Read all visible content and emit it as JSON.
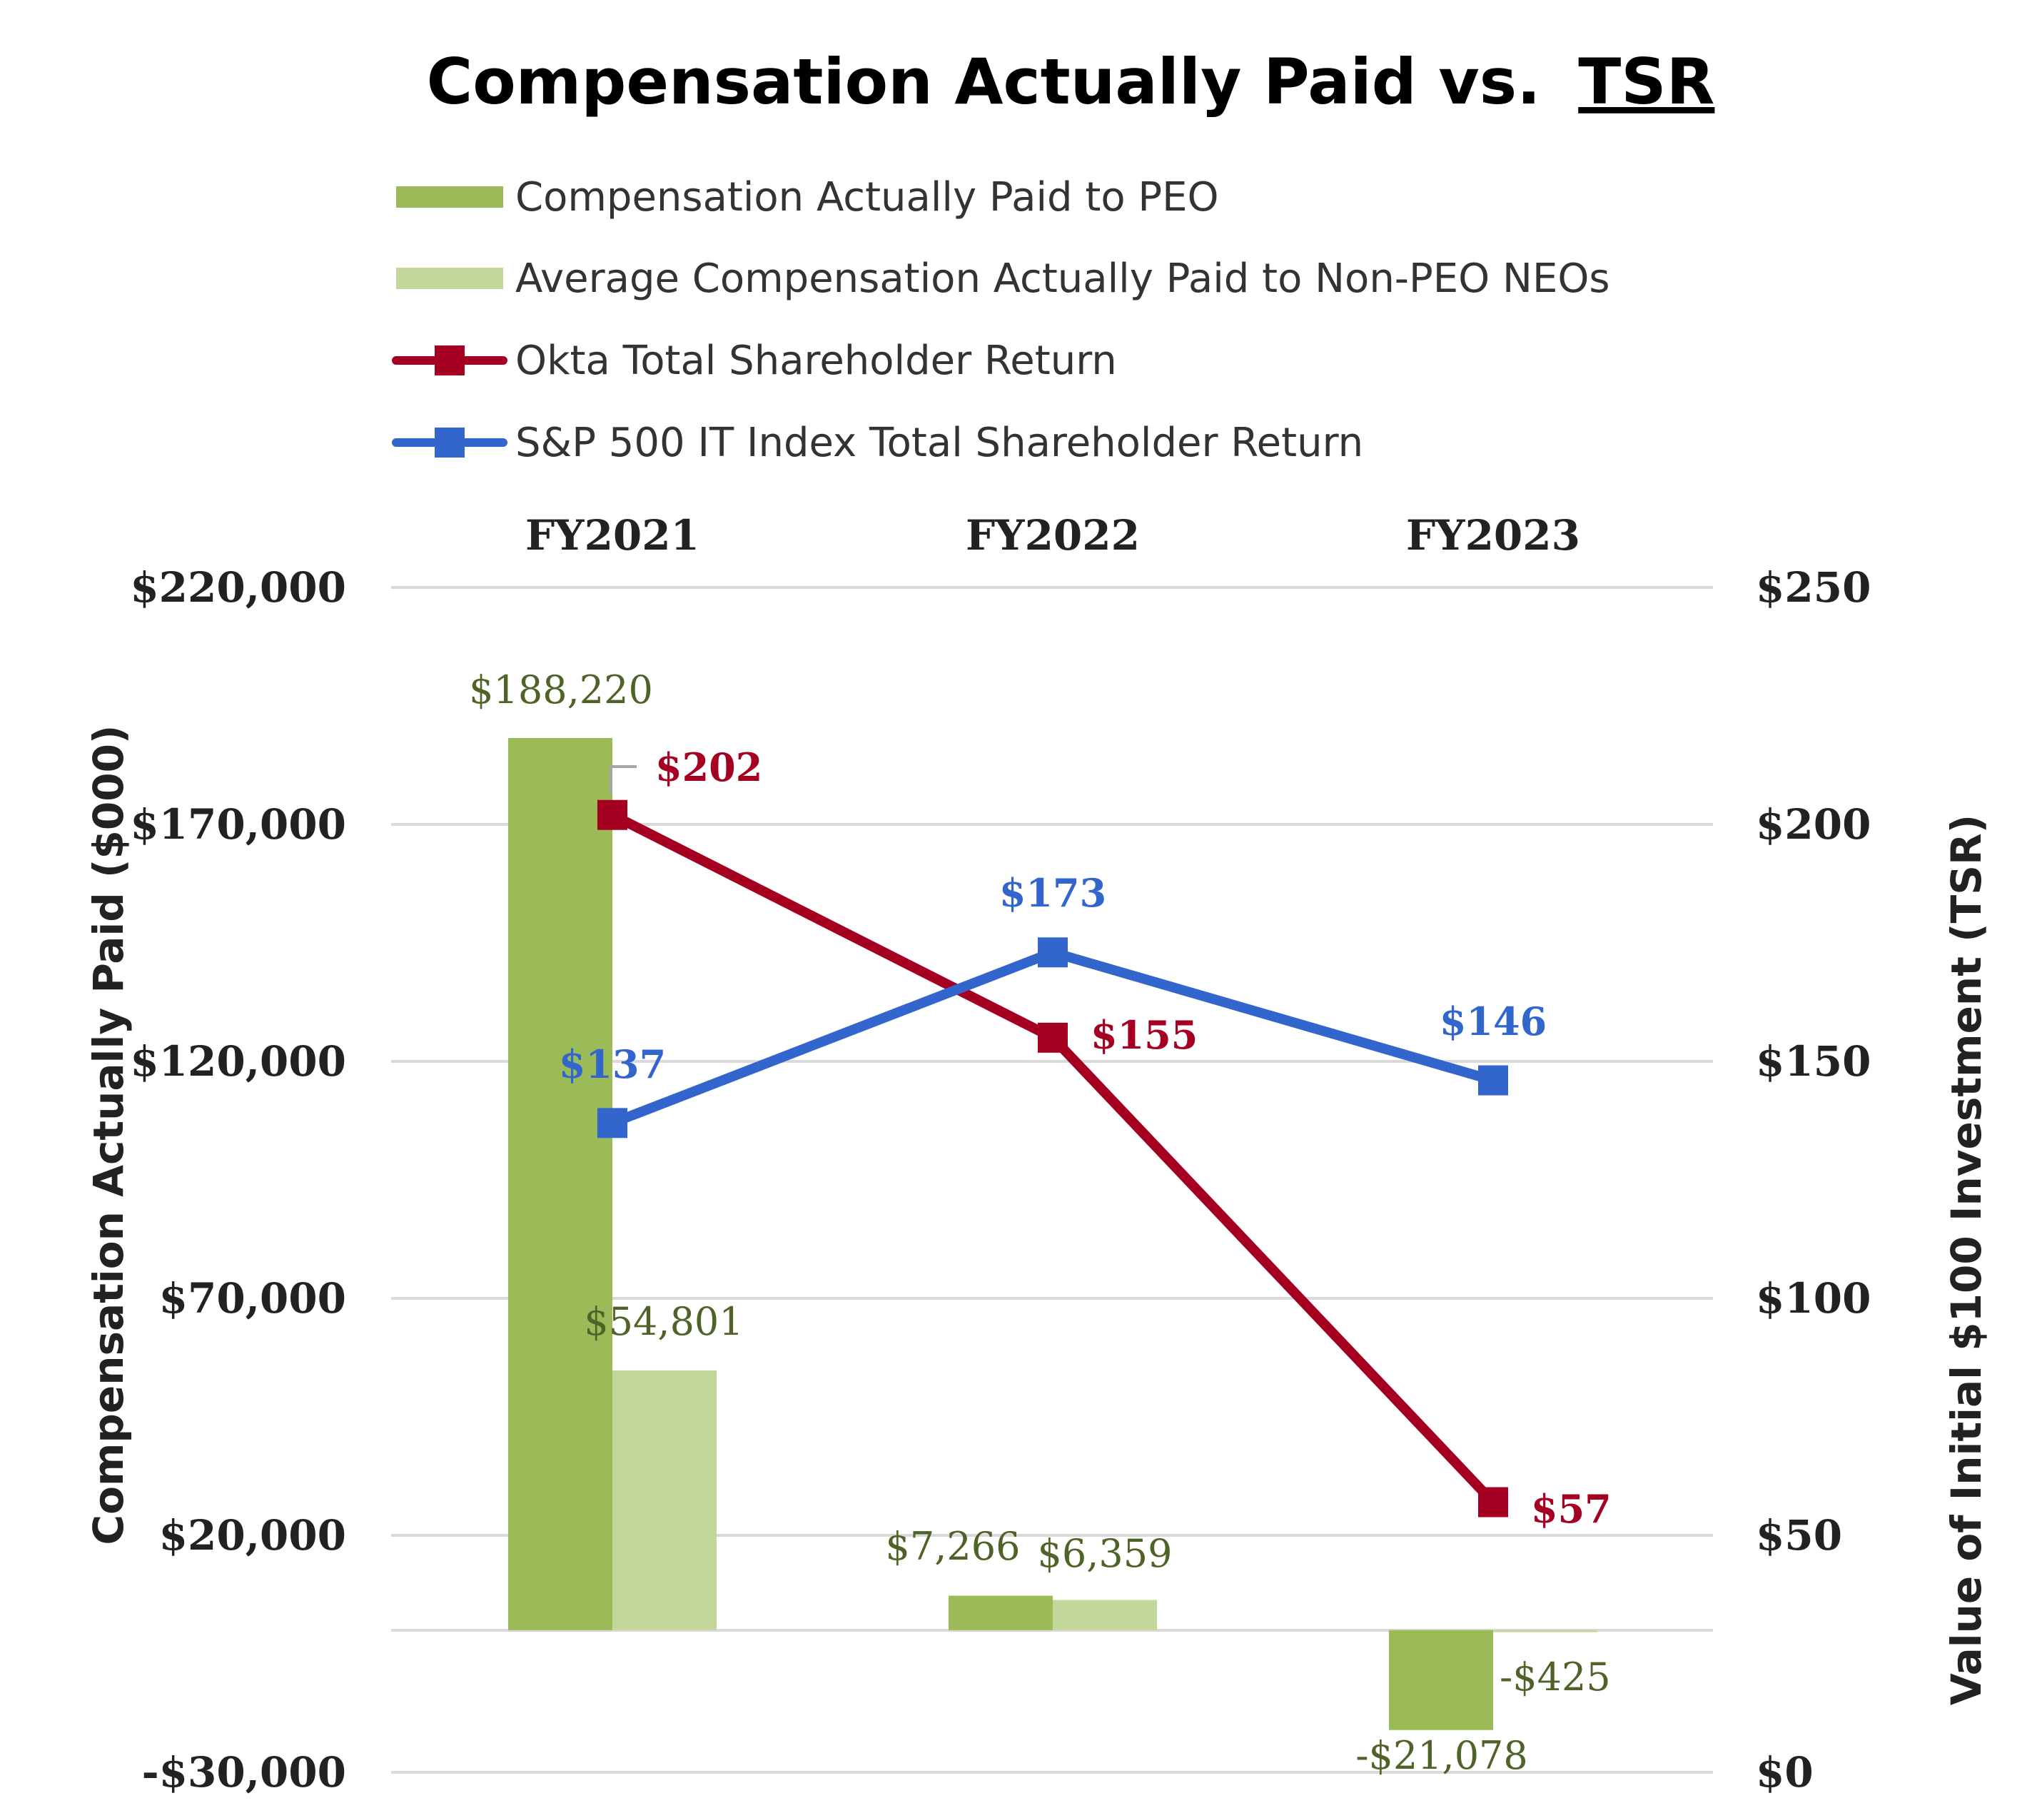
{
  "chart_data": {
    "type": "bar",
    "title": "Compensation Actually Paid vs.",
    "title_underlined": "TSR",
    "categories": [
      "FY2021",
      "FY2022",
      "FY2023"
    ],
    "left_axis": {
      "label": "Compensation Actually Paid ($000)",
      "ylim": [
        -30000,
        220000
      ],
      "ticks": [
        220000,
        170000,
        120000,
        70000,
        20000,
        -30000
      ],
      "tick_labels": [
        "$220,000",
        "$170,000",
        "$120,000",
        "$70,000",
        "$20,000",
        "-$30,000"
      ]
    },
    "right_axis": {
      "label": "Value of Initial $100 Investment (TSR)",
      "ylim": [
        0,
        250
      ],
      "ticks": [
        250,
        200,
        150,
        100,
        50,
        0
      ],
      "tick_labels": [
        "$250",
        "$200",
        "$150",
        "$100",
        "$50",
        "$0"
      ]
    },
    "series": [
      {
        "name": "Compensation Actually Paid to PEO",
        "type": "bar",
        "axis": "left",
        "color": "#9bbb59",
        "values": [
          188220,
          7266,
          -21078
        ],
        "labels": [
          "$188,220",
          "$7,266",
          "-$21,078"
        ]
      },
      {
        "name": "Average Compensation Actually Paid to Non-PEO NEOs",
        "type": "bar",
        "axis": "left",
        "color": "#c4d79b",
        "values": [
          54801,
          6359,
          -425
        ],
        "labels": [
          "$54,801",
          "$6,359",
          "-$425"
        ]
      },
      {
        "name": "Okta Total Shareholder Return",
        "type": "line",
        "axis": "right",
        "color": "#a50021",
        "values": [
          202,
          155,
          57
        ],
        "labels": [
          "$202",
          "$155",
          "$57"
        ]
      },
      {
        "name": "S&P 500 IT Index Total Shareholder Return",
        "type": "line",
        "axis": "right",
        "color": "#3366cc",
        "values": [
          137,
          173,
          146
        ],
        "labels": [
          "$137",
          "$173",
          "$146"
        ]
      }
    ],
    "legend_position": "top",
    "grid": true
  }
}
